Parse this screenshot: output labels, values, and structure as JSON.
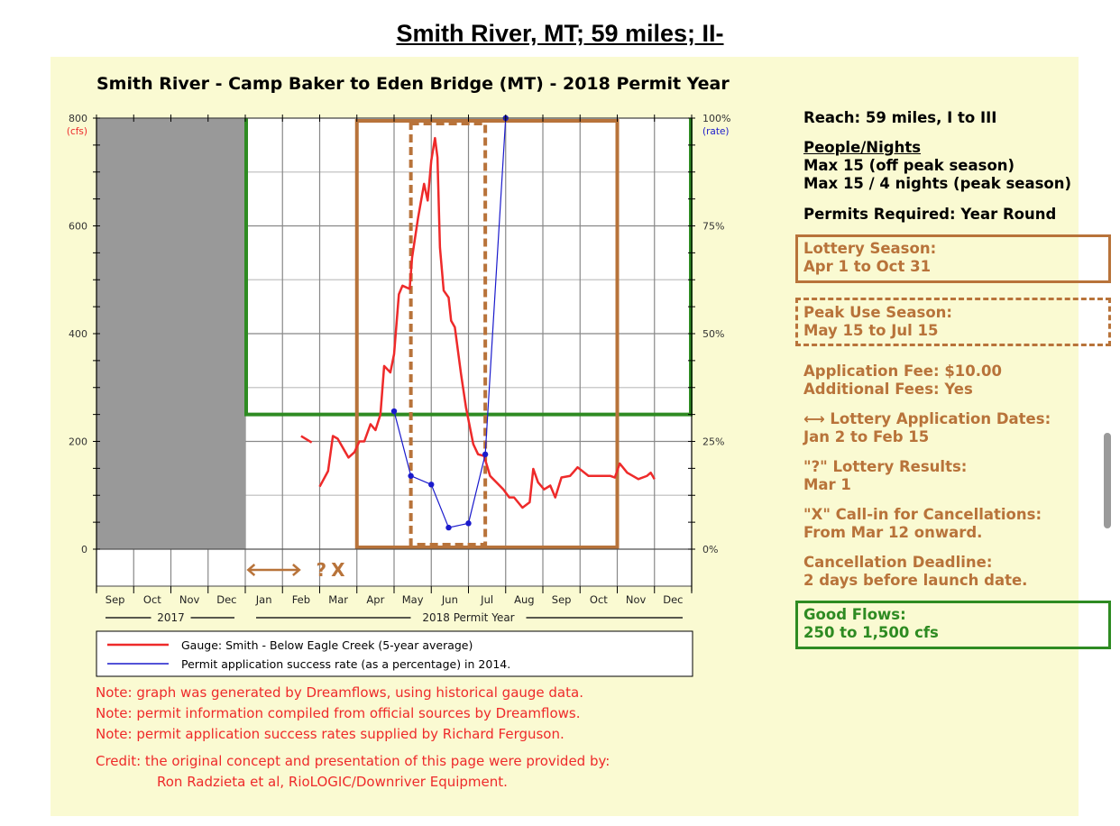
{
  "page_title": "Smith River, MT; 59 miles; II-",
  "right_panel": {
    "reach": "Reach: 59 miles, I to III",
    "people_heading": "People/Nights",
    "people_line1": "Max 15 (off peak season)",
    "people_line2": "Max 15 / 4 nights (peak season)",
    "permits": "Permits Required: Year Round",
    "lottery_label": "Lottery Season:",
    "lottery_dates": "Apr 1 to Oct 31",
    "peak_label": "Peak Use Season:",
    "peak_dates": "May 15 to Jul 15",
    "fee": "Application Fee: $10.00",
    "additional_fees": "Additional Fees: Yes",
    "application_label": "⟷ Lottery Application Dates:",
    "application_dates": "Jan 2 to Feb 15",
    "results_label": "\"?\" Lottery Results:",
    "results_date": "Mar 1",
    "callin_label": "\"X\" Call-in for Cancellations:",
    "callin_dates": "From Mar 12 onward.",
    "deadline_label": "Cancellation Deadline:",
    "deadline_value": "2 days before launch date.",
    "flows_label": "Good Flows:",
    "flows_value": "250 to 1,500 cfs"
  },
  "notes": [
    "Note: graph was generated by Dreamflows, using historical gauge data.",
    "Note: permit information compiled from official sources by Dreamflows.",
    "Note: permit application success rates supplied by Richard Ferguson."
  ],
  "credit_line1": "Credit: the original concept and presentation of this page were provided by:",
  "credit_line2": "Ron Radzieta et al, RioLOGIC/Downriver Equipment.",
  "colors": {
    "flow": "#ee2a2a",
    "rate": "#1a1acc",
    "lottery": "#b8733a",
    "good_flows": "#2e8b22",
    "unavailable": "#999999",
    "background": "#fafad2"
  },
  "chart_data": {
    "type": "line",
    "title": "Smith River - Camp Baker to Eden Bridge (MT) - 2018 Permit Year",
    "ylabel": "(cfs)",
    "y2label": "(rate)",
    "ylim": [
      0,
      800
    ],
    "y2lim": [
      0,
      100
    ],
    "yticks": [
      "0",
      "200",
      "400",
      "600",
      "800"
    ],
    "y2ticks": [
      "0%",
      "25%",
      "50%",
      "75%",
      "100%"
    ],
    "x_months": [
      "Sep",
      "Oct",
      "Nov",
      "Dec",
      "Jan",
      "Feb",
      "Mar",
      "Apr",
      "May",
      "Jun",
      "Jul",
      "Aug",
      "Sep",
      "Oct",
      "Nov",
      "Dec"
    ],
    "x_range": [
      "2017-09-01",
      "2018-12-31"
    ],
    "year_labels": [
      "2017",
      "2018 Permit Year"
    ],
    "grid": true,
    "legend_position": "bottom",
    "series": [
      {
        "name": "Gauge: Smith - Below Eagle Creek (5-year average)",
        "axis": "left",
        "segments": [
          [
            [
              "2018-02-15",
              210
            ],
            [
              "2018-02-23",
              198
            ]
          ],
          [
            [
              "2018-03-01",
              116
            ],
            [
              "2018-03-08",
              145
            ],
            [
              "2018-03-12",
              210
            ],
            [
              "2018-03-16",
              205
            ],
            [
              "2018-03-25",
              170
            ],
            [
              "2018-03-30",
              180
            ],
            [
              "2018-04-03",
              200
            ],
            [
              "2018-04-07",
              200
            ],
            [
              "2018-04-12",
              232
            ],
            [
              "2018-04-16",
              221
            ],
            [
              "2018-04-20",
              250
            ],
            [
              "2018-04-23",
              340
            ],
            [
              "2018-04-28",
              328
            ],
            [
              "2018-05-01",
              362
            ],
            [
              "2018-05-05",
              473
            ],
            [
              "2018-05-08",
              489
            ],
            [
              "2018-05-14",
              483
            ],
            [
              "2018-05-16",
              541
            ],
            [
              "2018-05-21",
              615
            ],
            [
              "2018-05-26",
              678
            ],
            [
              "2018-05-29",
              647
            ],
            [
              "2018-06-01",
              721
            ],
            [
              "2018-06-04",
              763
            ],
            [
              "2018-06-06",
              727
            ],
            [
              "2018-06-08",
              560
            ],
            [
              "2018-06-11",
              480
            ],
            [
              "2018-06-15",
              467
            ],
            [
              "2018-06-17",
              424
            ],
            [
              "2018-06-20",
              412
            ],
            [
              "2018-06-25",
              325
            ],
            [
              "2018-06-29",
              263
            ],
            [
              "2018-07-05",
              195
            ],
            [
              "2018-07-09",
              176
            ],
            [
              "2018-07-14",
              173
            ],
            [
              "2018-07-19",
              136
            ],
            [
              "2018-07-30",
              111
            ],
            [
              "2018-08-04",
              96
            ],
            [
              "2018-08-08",
              96
            ],
            [
              "2018-08-15",
              77
            ],
            [
              "2018-08-21",
              87
            ],
            [
              "2018-08-24",
              149
            ],
            [
              "2018-08-28",
              124
            ],
            [
              "2018-09-02",
              111
            ],
            [
              "2018-09-07",
              118
            ],
            [
              "2018-09-11",
              96
            ],
            [
              "2018-09-16",
              133
            ],
            [
              "2018-09-23",
              136
            ],
            [
              "2018-09-29",
              152
            ],
            [
              "2018-10-08",
              136
            ],
            [
              "2018-10-13",
              136
            ],
            [
              "2018-10-26",
              136
            ],
            [
              "2018-10-30",
              133
            ],
            [
              "2018-11-03",
              159
            ],
            [
              "2018-11-09",
              142
            ],
            [
              "2018-11-18",
              130
            ],
            [
              "2018-11-25",
              136
            ],
            [
              "2018-11-28",
              142
            ],
            [
              "2018-12-01",
              130
            ]
          ]
        ]
      },
      {
        "name": "Permit application success rate (as a percentage) in 2014.",
        "axis": "right",
        "points": [
          [
            "2018-05-01",
            32
          ],
          [
            "2018-05-15",
            17
          ],
          [
            "2018-06-01",
            15
          ],
          [
            "2018-06-15",
            5
          ],
          [
            "2018-07-01",
            6
          ],
          [
            "2018-07-15",
            22
          ],
          [
            "2018-08-01",
            100
          ]
        ]
      }
    ],
    "regions": {
      "unavailable": [
        "2017-09-01",
        "2018-01-01"
      ],
      "good_flows": {
        "from": "2018-01-01",
        "to": "2018-12-31",
        "min_cfs": 250
      },
      "lottery_season": [
        "2018-04-01",
        "2018-10-31"
      ],
      "peak_season": [
        "2018-05-15",
        "2018-07-15"
      ],
      "application_dates": [
        "2018-01-02",
        "2018-02-15"
      ],
      "markers": [
        {
          "label": "?",
          "date": "2018-03-01"
        },
        {
          "label": "X",
          "date": "2018-03-12"
        }
      ]
    }
  }
}
